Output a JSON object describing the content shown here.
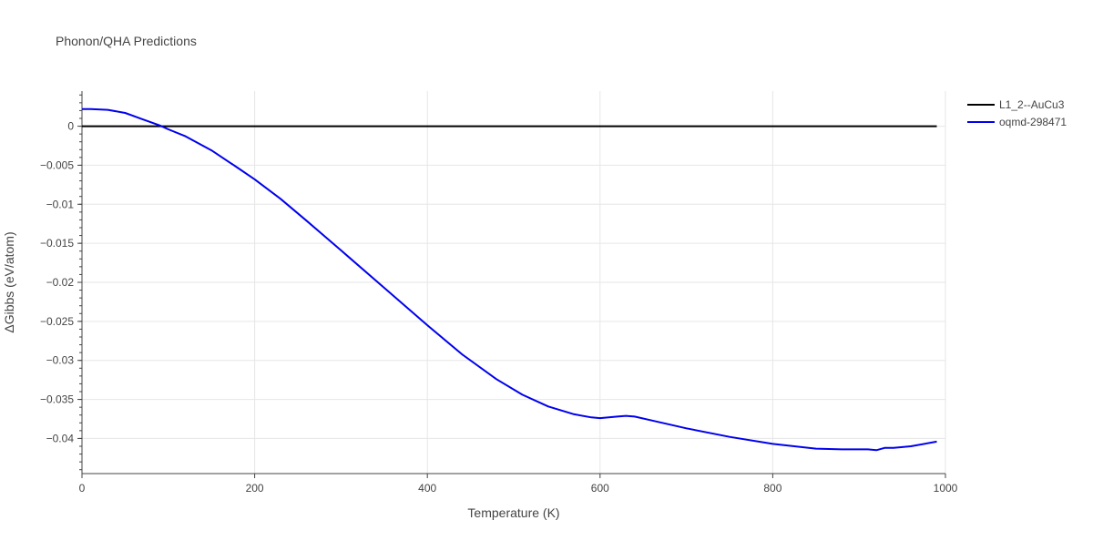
{
  "chart_data": {
    "type": "line",
    "title": "Phonon/QHA Predictions",
    "xlabel": "Temperature (K)",
    "ylabel": "ΔGibbs (eV/atom)",
    "xlim": [
      0,
      1000
    ],
    "ylim": [
      -0.0445,
      0.0045
    ],
    "xticks": [
      0,
      200,
      400,
      600,
      800,
      1000
    ],
    "xtick_labels": [
      "0",
      "200",
      "400",
      "600",
      "800",
      "1000"
    ],
    "yticks": [
      0,
      -0.005,
      -0.01,
      -0.015,
      -0.02,
      -0.025,
      -0.03,
      -0.035,
      -0.04
    ],
    "ytick_labels": [
      "0",
      "−0.005",
      "−0.01",
      "−0.015",
      "−0.02",
      "−0.025",
      "−0.03",
      "−0.035",
      "−0.04"
    ],
    "grid": true,
    "legend_position": "top-right",
    "series": [
      {
        "name": "L1_2--AuCu3",
        "color": "#000000",
        "x": [
          0,
          990
        ],
        "y": [
          0,
          0
        ]
      },
      {
        "name": "oqmd-298471",
        "color": "#0000ee",
        "x": [
          0,
          10,
          30,
          50,
          70,
          90,
          100,
          120,
          150,
          180,
          200,
          230,
          260,
          300,
          350,
          400,
          440,
          480,
          510,
          540,
          570,
          590,
          600,
          610,
          620,
          630,
          640,
          660,
          700,
          750,
          800,
          850,
          880,
          910,
          920,
          930,
          940,
          960,
          990
        ],
        "y": [
          0.0022,
          0.0022,
          0.0021,
          0.0017,
          0.0009,
          0.0001,
          -0.0004,
          -0.0013,
          -0.0031,
          -0.0053,
          -0.0068,
          -0.0093,
          -0.0121,
          -0.0159,
          -0.0207,
          -0.0255,
          -0.0292,
          -0.0324,
          -0.0344,
          -0.0359,
          -0.0369,
          -0.0373,
          -0.0374,
          -0.0373,
          -0.0372,
          -0.0371,
          -0.0372,
          -0.0377,
          -0.0387,
          -0.0398,
          -0.0407,
          -0.0413,
          -0.0414,
          -0.0414,
          -0.0415,
          -0.0412,
          -0.0412,
          -0.041,
          -0.0404
        ]
      }
    ]
  }
}
